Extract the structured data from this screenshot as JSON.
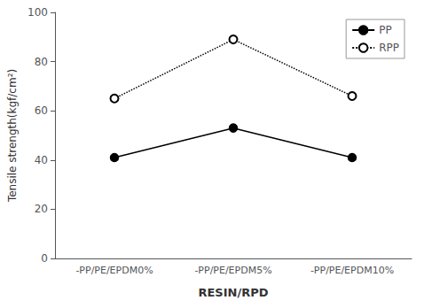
{
  "chart_data": {
    "type": "line",
    "xlabel": "RESIN/RPD",
    "ylabel": "Tensile strength(kgf/cm²)",
    "categories": [
      "-PP/PE/EPDM0%",
      "-PP/PE/EPDM5%",
      "-PP/PE/EPDM10%"
    ],
    "series": [
      {
        "name": "PP",
        "color": "black",
        "values": [
          41,
          53,
          41
        ],
        "marker": "filled_circle",
        "line_style": "solid"
      },
      {
        "name": "RPP",
        "color": "black",
        "values": [
          65,
          89,
          66
        ],
        "marker": "open_circle",
        "line_style": "dotted"
      }
    ],
    "ylim": [
      0,
      100
    ],
    "yticks": [
      0,
      20,
      40,
      60,
      80,
      100
    ],
    "grid": false,
    "legend": "upper right"
  }
}
